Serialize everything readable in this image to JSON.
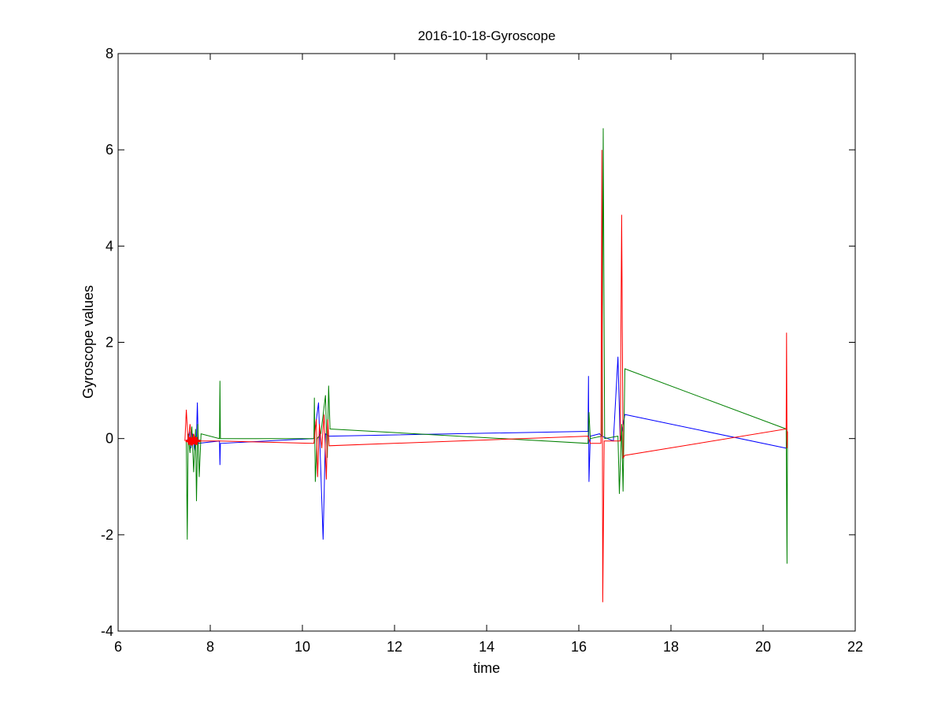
{
  "chart_data": {
    "type": "line",
    "title": "2016-10-18-Gyroscope",
    "xlabel": "time",
    "ylabel": "Gyroscope values",
    "xlim": [
      6,
      22
    ],
    "ylim": [
      -4,
      8
    ],
    "xticks": [
      6,
      8,
      10,
      12,
      14,
      16,
      18,
      20,
      22
    ],
    "yticks": [
      -4,
      -2,
      0,
      2,
      4,
      6,
      8
    ],
    "xtick_labels": [
      "6",
      "8",
      "10",
      "12",
      "14",
      "16",
      "18",
      "20",
      "22"
    ],
    "ytick_labels": [
      "-4",
      "-2",
      "0",
      "2",
      "4",
      "6",
      "8"
    ],
    "grid": false,
    "legend": "none",
    "series": [
      {
        "color": "#0000ff",
        "points": [
          [
            7.5,
            -0.05
          ],
          [
            7.55,
            0.15
          ],
          [
            7.58,
            -0.2
          ],
          [
            7.62,
            0.1
          ],
          [
            7.66,
            -0.25
          ],
          [
            7.7,
            0.05
          ],
          [
            7.72,
            0.75
          ],
          [
            7.74,
            -0.1
          ],
          [
            8.2,
            -0.05
          ],
          [
            8.21,
            -0.55
          ],
          [
            8.22,
            -0.1
          ],
          [
            10.25,
            0.0
          ],
          [
            10.35,
            0.75
          ],
          [
            10.38,
            -0.1
          ],
          [
            10.45,
            -2.1
          ],
          [
            10.5,
            0.1
          ],
          [
            10.58,
            0.05
          ],
          [
            16.2,
            0.15
          ],
          [
            16.21,
            1.3
          ],
          [
            16.22,
            -0.9
          ],
          [
            16.25,
            0.05
          ],
          [
            16.45,
            0.1
          ],
          [
            16.5,
            0.05
          ],
          [
            16.75,
            -0.05
          ],
          [
            16.85,
            1.7
          ],
          [
            16.9,
            -0.05
          ],
          [
            17.0,
            0.5
          ],
          [
            20.5,
            -0.2
          ],
          [
            20.52,
            -0.05
          ]
        ]
      },
      {
        "color": "#008000",
        "points": [
          [
            7.48,
            -0.05
          ],
          [
            7.5,
            -2.1
          ],
          [
            7.52,
            0.1
          ],
          [
            7.56,
            -0.3
          ],
          [
            7.6,
            0.25
          ],
          [
            7.64,
            -0.7
          ],
          [
            7.68,
            0.2
          ],
          [
            7.7,
            -1.3
          ],
          [
            7.73,
            0.3
          ],
          [
            7.76,
            -0.8
          ],
          [
            7.8,
            0.1
          ],
          [
            8.2,
            0.0
          ],
          [
            8.21,
            1.2
          ],
          [
            8.22,
            0.0
          ],
          [
            10.25,
            0.0
          ],
          [
            10.26,
            0.85
          ],
          [
            10.28,
            -0.9
          ],
          [
            10.32,
            0.0
          ],
          [
            10.4,
            0.1
          ],
          [
            10.5,
            0.9
          ],
          [
            10.54,
            -0.4
          ],
          [
            10.57,
            1.1
          ],
          [
            10.6,
            0.2
          ],
          [
            16.2,
            -0.1
          ],
          [
            16.22,
            0.55
          ],
          [
            16.25,
            0.0
          ],
          [
            16.5,
            0.05
          ],
          [
            16.53,
            6.45
          ],
          [
            16.56,
            0.0
          ],
          [
            16.85,
            0.05
          ],
          [
            16.88,
            -1.15
          ],
          [
            16.93,
            0.3
          ],
          [
            16.96,
            -1.1
          ],
          [
            17.0,
            1.45
          ],
          [
            20.5,
            0.2
          ],
          [
            20.52,
            -2.6
          ],
          [
            20.53,
            0.15
          ]
        ]
      },
      {
        "color": "#ff0000",
        "points": [
          [
            7.45,
            -0.05
          ],
          [
            7.48,
            0.6
          ],
          [
            7.52,
            -0.1
          ],
          [
            7.56,
            0.3
          ],
          [
            7.6,
            -0.1
          ],
          [
            7.64,
            0.1
          ],
          [
            7.68,
            -0.05
          ],
          [
            7.72,
            -0.05
          ],
          [
            8.2,
            -0.05
          ],
          [
            10.25,
            -0.1
          ],
          [
            10.3,
            0.4
          ],
          [
            10.33,
            -0.8
          ],
          [
            10.37,
            0.3
          ],
          [
            10.42,
            -0.2
          ],
          [
            10.47,
            0.5
          ],
          [
            10.52,
            -0.85
          ],
          [
            10.55,
            0.4
          ],
          [
            10.58,
            -0.15
          ],
          [
            16.2,
            0.05
          ],
          [
            16.25,
            -0.1
          ],
          [
            16.48,
            -0.1
          ],
          [
            16.5,
            6.0
          ],
          [
            16.52,
            -3.4
          ],
          [
            16.55,
            -0.05
          ],
          [
            16.9,
            -0.05
          ],
          [
            16.93,
            4.65
          ],
          [
            16.96,
            -0.4
          ],
          [
            17.0,
            -0.35
          ],
          [
            20.5,
            0.2
          ],
          [
            20.51,
            2.2
          ],
          [
            20.52,
            -0.2
          ],
          [
            20.53,
            0.15
          ]
        ]
      }
    ],
    "markers": {
      "color": "#ff0000",
      "points": [
        [
          7.55,
          -0.05
        ],
        [
          7.6,
          -0.06
        ],
        [
          7.65,
          -0.04
        ],
        [
          7.7,
          -0.05
        ]
      ]
    }
  }
}
